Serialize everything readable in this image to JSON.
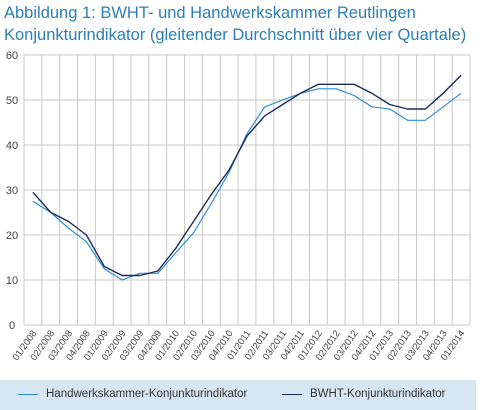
{
  "title": {
    "line1": "Abbildung 1: BWHT- und Handwerkskammer  Reutlingen",
    "line2": "Konjunkturindikator (gleitender Durchschnitt über vier Quartale)"
  },
  "legend": {
    "series1": "Handwerkskammer-Konjunkturindikator",
    "series2": "BWHT-Konjunkturindikator"
  },
  "colors": {
    "series1": "#2b8fd4",
    "series2": "#1a2b5c",
    "grid": "#c8c8c8",
    "legend_bg": "#d6e6f3",
    "title": "#2b7fb6"
  },
  "chart_data": {
    "type": "line",
    "x": [
      "01/2008",
      "02/2008",
      "03/2008",
      "04/2008",
      "01/2009",
      "02/2009",
      "03/2009",
      "04/2009",
      "01/2010",
      "02/2010",
      "03/2010",
      "04/2010",
      "01/2011",
      "02/2011",
      "03/2011",
      "04/2011",
      "01/2012",
      "02/2012",
      "03/2012",
      "04/2012",
      "01/2013",
      "02/2013",
      "03/2013",
      "04/2013",
      "01/2014"
    ],
    "series": [
      {
        "name": "Handwerkskammer-Konjunkturindikator",
        "values": [
          27.5,
          25,
          21.5,
          18.5,
          12.5,
          10,
          11.5,
          11.5,
          16,
          20.5,
          27,
          34,
          42.5,
          48.5,
          50,
          51.5,
          52.5,
          52.5,
          51,
          48.5,
          48,
          45.5,
          45.5,
          48.5,
          51.5
        ]
      },
      {
        "name": "BWHT-Konjunkturindikator",
        "values": [
          29.5,
          25,
          23,
          20,
          13,
          11,
          11,
          12,
          17,
          23,
          29,
          34.5,
          42,
          46.5,
          49,
          51.5,
          53.5,
          53.5,
          53.5,
          51.5,
          49,
          48,
          48,
          51.5,
          55.5
        ]
      }
    ],
    "ylim": [
      0,
      60
    ],
    "yticks": [
      0,
      10,
      20,
      30,
      40,
      50,
      60
    ],
    "grid": true,
    "legend_position": "bottom"
  }
}
